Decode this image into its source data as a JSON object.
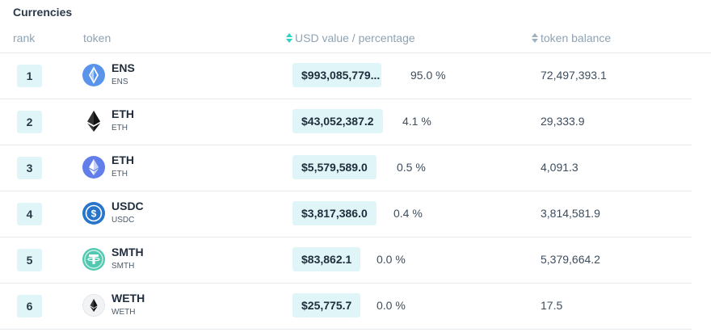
{
  "section_title": "Currencies",
  "headers": {
    "rank": "rank",
    "token": "token",
    "usd": "USD value / percentage",
    "balance": "token balance"
  },
  "colors": {
    "accent": "#2dd4bf",
    "badge_bg": "#dff5f7"
  },
  "rows": [
    {
      "rank": "1",
      "name": "ENS",
      "symbol": "ENS",
      "icon": "ens-icon",
      "usd": "$993,085,779...",
      "pct": "95.0 %",
      "balance": "72,497,393.1"
    },
    {
      "rank": "2",
      "name": "ETH",
      "symbol": "ETH",
      "icon": "eth-black-icon",
      "usd": "$43,052,387.2",
      "pct": "4.1 %",
      "balance": "29,333.9"
    },
    {
      "rank": "3",
      "name": "ETH",
      "symbol": "ETH",
      "icon": "eth-blue-icon",
      "usd": "$5,579,589.0",
      "pct": "0.5 %",
      "balance": "4,091.3"
    },
    {
      "rank": "4",
      "name": "USDC",
      "symbol": "USDC",
      "icon": "usdc-icon",
      "usd": "$3,817,386.0",
      "pct": "0.4 %",
      "balance": "3,814,581.9"
    },
    {
      "rank": "5",
      "name": "SMTH",
      "symbol": "SMTH",
      "icon": "tether-icon",
      "usd": "$83,862.1",
      "pct": "0.0 %",
      "balance": "5,379,664.2"
    },
    {
      "rank": "6",
      "name": "WETH",
      "symbol": "WETH",
      "icon": "weth-icon",
      "usd": "$25,775.7",
      "pct": "0.0 %",
      "balance": "17.5"
    }
  ]
}
